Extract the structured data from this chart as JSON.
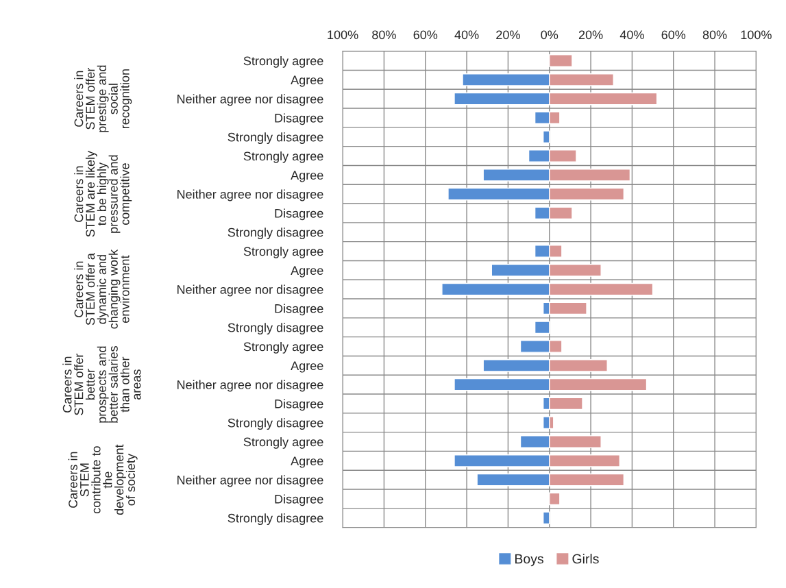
{
  "chart_data": {
    "type": "bar",
    "orientation": "horizontal",
    "categories": [
      "Strongly agree",
      "Agree",
      "Neither agree nor disagree",
      "Disagree",
      "Strongly disagree",
      "Strongly agree",
      "Agree",
      "Neither agree nor disagree",
      "Disagree",
      "Strongly disagree",
      "Strongly agree",
      "Agree",
      "Neither agree nor disagree",
      "Disagree",
      "Strongly disagree",
      "Strongly agree",
      "Agree",
      "Neither agree nor disagree",
      "Disagree",
      "Strongly disagree",
      "Strongly agree",
      "Agree",
      "Neither agree nor disagree",
      "Disagree",
      "Strongly disagree"
    ],
    "series": [
      {
        "name": "Boys",
        "color": "#558ed5",
        "values": [
          null,
          -42,
          -46,
          -7,
          -3,
          -10,
          -32,
          -49,
          -7,
          null,
          -7,
          -28,
          -52,
          -3,
          -7,
          -14,
          -32,
          -46,
          -3,
          -3,
          -14,
          -46,
          -35,
          null,
          -3
        ]
      },
      {
        "name": "Girls",
        "color": "#d99694",
        "values": [
          11,
          31,
          52,
          5,
          null,
          13,
          39,
          36,
          11,
          null,
          6,
          25,
          50,
          18,
          null,
          6,
          28,
          47,
          16,
          2,
          25,
          34,
          36,
          5,
          null
        ]
      }
    ],
    "annotations": [
      "Careers in\nSTEM offer\nprestige and\nsocial\nrecognition",
      "Careers in\nSTEM are likely\nto be highly\npressured and\ncompetitive",
      "Careers in\nSTEM offer a\ndynamic and\nchanging work\nenvironment",
      "Careers in\nSTEM offer\nbetter\nprospects and\nbetter salaries\nthan other\nareas",
      "Careers in\nSTEM\ncontribute to\nthe\ndevelopment\nof society"
    ],
    "xlim": [
      -100,
      100
    ],
    "xticks": [
      {
        "value": -100,
        "label": "100%"
      },
      {
        "value": -80,
        "label": "80%"
      },
      {
        "value": -60,
        "label": "60%"
      },
      {
        "value": -40,
        "label": "40%"
      },
      {
        "value": -20,
        "label": "20%"
      },
      {
        "value": 0,
        "label": "0%"
      },
      {
        "value": 20,
        "label": "20%"
      },
      {
        "value": 40,
        "label": "40%"
      },
      {
        "value": 60,
        "label": "60%"
      },
      {
        "value": 80,
        "label": "80%"
      },
      {
        "value": 100,
        "label": "100%"
      }
    ],
    "grid": true,
    "legend": "bottom",
    "stacked": true
  }
}
